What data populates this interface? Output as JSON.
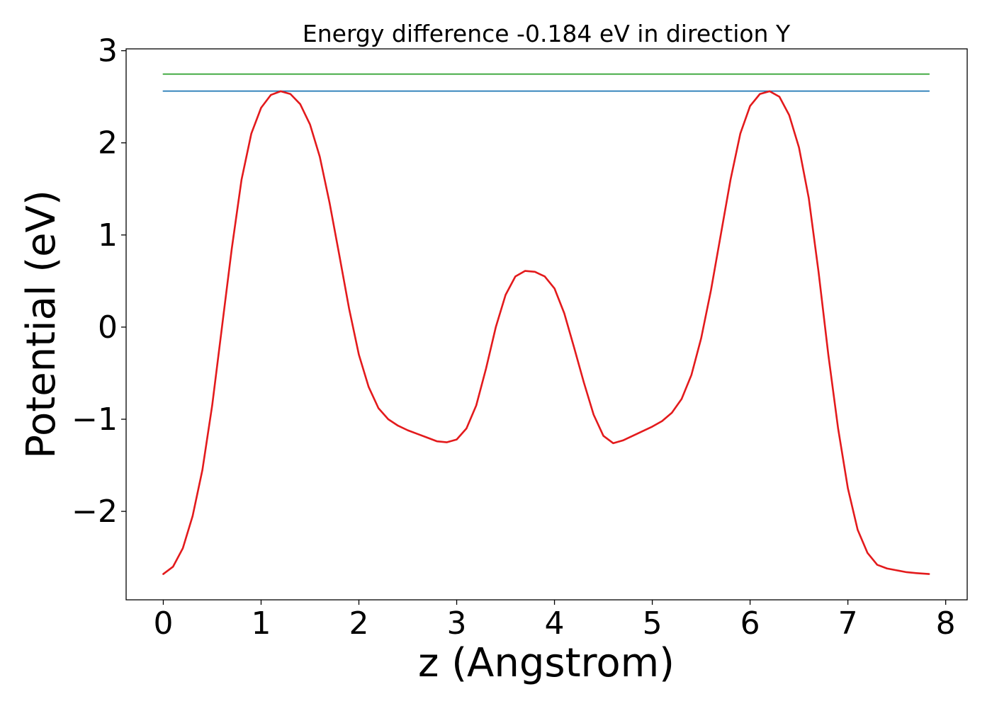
{
  "chart_data": {
    "type": "line",
    "title": "Energy difference -0.184 eV in direction Y",
    "xlabel": "z (Angstrom)",
    "ylabel": "Potential (eV)",
    "xlim": [
      -0.38,
      8.22
    ],
    "ylim": [
      -2.96,
      3.02
    ],
    "xticks": [
      0,
      1,
      2,
      3,
      4,
      5,
      6,
      7,
      8
    ],
    "xtick_labels": [
      "0",
      "1",
      "2",
      "3",
      "4",
      "5",
      "6",
      "7",
      "8"
    ],
    "yticks": [
      -2,
      -1,
      0,
      1,
      2,
      3
    ],
    "ytick_labels": [
      "−2",
      "−1",
      "0",
      "1",
      "2",
      "3"
    ],
    "grid": false,
    "series": [
      {
        "color": "#2ca02c",
        "style": "hline",
        "x": [
          0,
          7.83
        ],
        "y": [
          2.746,
          2.746
        ]
      },
      {
        "color": "#1f77b4",
        "style": "hline",
        "x": [
          0,
          7.83
        ],
        "y": [
          2.562,
          2.562
        ]
      },
      {
        "color": "#e31a1c",
        "style": "curve",
        "x": [
          0.0,
          0.1,
          0.2,
          0.3,
          0.4,
          0.5,
          0.6,
          0.7,
          0.8,
          0.9,
          1.0,
          1.1,
          1.2,
          1.3,
          1.4,
          1.5,
          1.6,
          1.7,
          1.8,
          1.9,
          2.0,
          2.1,
          2.2,
          2.3,
          2.4,
          2.5,
          2.6,
          2.7,
          2.8,
          2.9,
          3.0,
          3.1,
          3.2,
          3.3,
          3.4,
          3.5,
          3.6,
          3.7,
          3.8,
          3.9,
          4.0,
          4.1,
          4.2,
          4.3,
          4.4,
          4.5,
          4.6,
          4.7,
          4.8,
          4.9,
          5.0,
          5.1,
          5.2,
          5.3,
          5.4,
          5.5,
          5.6,
          5.7,
          5.8,
          5.9,
          6.0,
          6.1,
          6.2,
          6.3,
          6.4,
          6.5,
          6.6,
          6.7,
          6.8,
          6.9,
          7.0,
          7.1,
          7.2,
          7.3,
          7.4,
          7.5,
          7.6,
          7.7,
          7.83
        ],
        "y": [
          -2.68,
          -2.6,
          -2.4,
          -2.05,
          -1.55,
          -0.85,
          0.0,
          0.85,
          1.6,
          2.1,
          2.38,
          2.52,
          2.56,
          2.53,
          2.42,
          2.2,
          1.85,
          1.35,
          0.78,
          0.2,
          -0.3,
          -0.65,
          -0.88,
          -1.0,
          -1.07,
          -1.12,
          -1.16,
          -1.2,
          -1.24,
          -1.25,
          -1.22,
          -1.1,
          -0.85,
          -0.45,
          0.0,
          0.35,
          0.55,
          0.61,
          0.6,
          0.55,
          0.42,
          0.15,
          -0.22,
          -0.6,
          -0.95,
          -1.18,
          -1.26,
          -1.23,
          -1.18,
          -1.13,
          -1.08,
          -1.02,
          -0.93,
          -0.78,
          -0.52,
          -0.12,
          0.4,
          1.0,
          1.6,
          2.1,
          2.4,
          2.53,
          2.56,
          2.5,
          2.3,
          1.95,
          1.4,
          0.6,
          -0.3,
          -1.1,
          -1.75,
          -2.2,
          -2.45,
          -2.58,
          -2.62,
          -2.64,
          -2.66,
          -2.67,
          -2.68
        ]
      }
    ]
  }
}
